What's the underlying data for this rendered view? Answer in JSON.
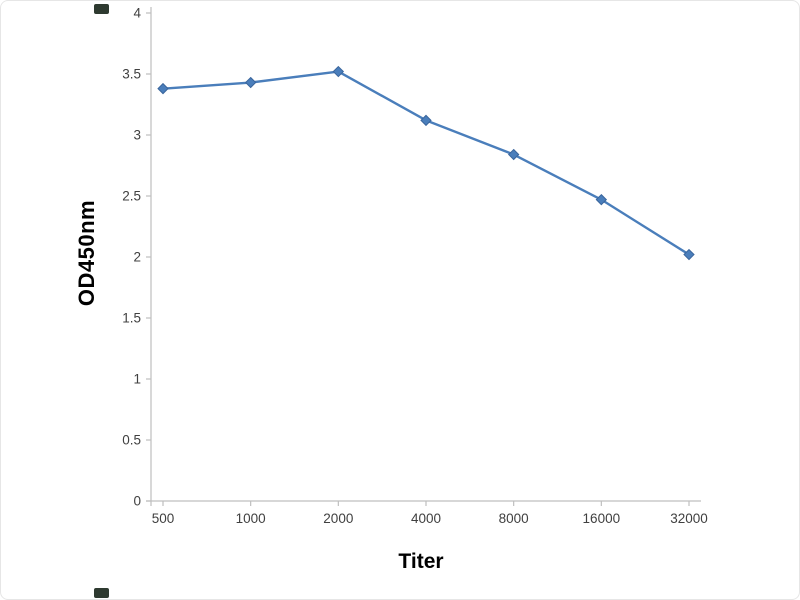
{
  "chart_data": {
    "type": "line",
    "categories": [
      "500",
      "1000",
      "2000",
      "4000",
      "8000",
      "16000",
      "32000"
    ],
    "values": [
      3.38,
      3.43,
      3.52,
      3.12,
      2.84,
      2.47,
      2.02
    ],
    "title": "",
    "xlabel": "Titer",
    "ylabel": "OD450nm",
    "ylim": [
      0,
      4
    ],
    "y_ticks": [
      0,
      0.5,
      1,
      1.5,
      2,
      2.5,
      3,
      3.5,
      4
    ],
    "grid": false,
    "legend": "none",
    "line_color": "#4a7ebb",
    "marker": "diamond",
    "marker_color": "#4a7ebb",
    "axis_color": "#bfbfbf",
    "tick_label_color": "#404040"
  }
}
